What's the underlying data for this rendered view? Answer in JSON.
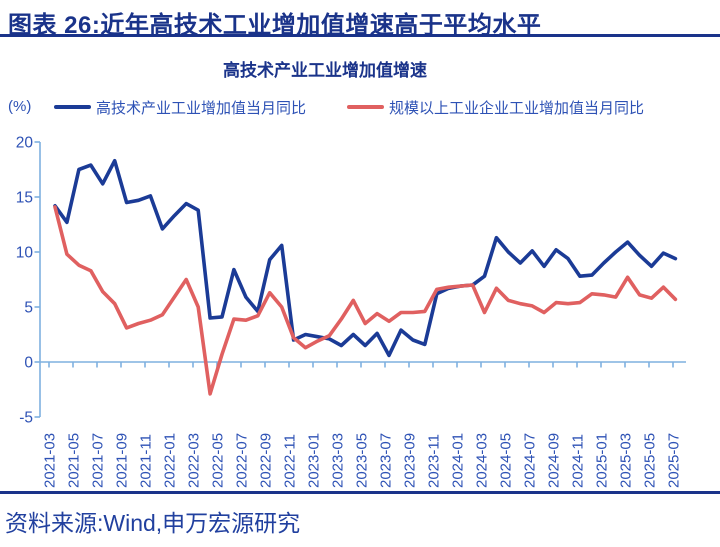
{
  "header": {
    "title": "图表 26:近年高技术工业增加值增速高于平均水平"
  },
  "source_line": "资料来源:Wind,申万宏源研究",
  "colors": {
    "navy": "#1A338A",
    "label_blue": "#2E52B5",
    "source_blue": "#21409F",
    "axis_blue": "#7FB0DF",
    "hitech_line": "#1B3B96",
    "industry_line": "#E06060"
  },
  "chart_data": {
    "type": "line",
    "title": "高技术产业工业增加值增速",
    "unit": "(%)",
    "ylim": [
      -5,
      20
    ],
    "y_ticks": [
      20,
      15,
      10,
      5,
      0,
      -5
    ],
    "grid": false,
    "legend_position": "top",
    "x_tick_labels": [
      "2021-03",
      "2021-05",
      "2021-07",
      "2021-09",
      "2021-11",
      "2022-01",
      "2022-03",
      "2022-05",
      "2022-07",
      "2022-09",
      "2022-11",
      "2023-01",
      "2023-03",
      "2023-05",
      "2023-07",
      "2023-09",
      "2023-11",
      "2024-01",
      "2024-03",
      "2024-05",
      "2024-07",
      "2024-09",
      "2024-11",
      "2025-01",
      "2025-03",
      "2025-05",
      "2025-07"
    ],
    "x": [
      "2021-03",
      "2021-04",
      "2021-05",
      "2021-06",
      "2021-07",
      "2021-08",
      "2021-09",
      "2021-10",
      "2021-11",
      "2021-12",
      "2022-01",
      "2022-02",
      "2022-03",
      "2022-04",
      "2022-05",
      "2022-06",
      "2022-07",
      "2022-08",
      "2022-09",
      "2022-10",
      "2022-11",
      "2022-12",
      "2023-01",
      "2023-02",
      "2023-03",
      "2023-04",
      "2023-05",
      "2023-06",
      "2023-07",
      "2023-08",
      "2023-09",
      "2023-10",
      "2023-11",
      "2023-12",
      "2024-01",
      "2024-02",
      "2024-03",
      "2024-04",
      "2024-05",
      "2024-06",
      "2024-07",
      "2024-08",
      "2024-09",
      "2024-10",
      "2024-11",
      "2024-12",
      "2025-01",
      "2025-02",
      "2025-03",
      "2025-04",
      "2025-05",
      "2025-06",
      "2025-07"
    ],
    "series": [
      {
        "name": "高技术产业工业增加值当月同比",
        "color": "#1B3B96",
        "values": [
          14.2,
          12.7,
          17.5,
          17.9,
          16.2,
          18.3,
          14.5,
          14.7,
          15.1,
          12.1,
          13.3,
          14.4,
          13.8,
          4.0,
          4.1,
          8.4,
          5.9,
          4.6,
          9.3,
          10.6,
          2.0,
          2.5,
          2.3,
          2.1,
          1.5,
          2.5,
          1.5,
          2.6,
          0.6,
          2.9,
          2.0,
          1.6,
          6.2,
          6.7,
          6.9,
          7.0,
          7.8,
          11.3,
          10.0,
          9.0,
          10.1,
          8.7,
          10.2,
          9.4,
          7.8,
          7.9,
          9.0,
          10.0,
          10.9,
          9.7,
          8.7,
          9.9,
          9.4
        ]
      },
      {
        "name": "规模以上工业企业工业增加值当月同比",
        "color": "#E06060",
        "values": [
          14.1,
          9.8,
          8.8,
          8.3,
          6.4,
          5.3,
          3.1,
          3.5,
          3.8,
          4.3,
          5.9,
          7.5,
          5.0,
          -2.9,
          0.7,
          3.9,
          3.8,
          4.2,
          6.3,
          5.0,
          2.2,
          1.3,
          1.9,
          2.4,
          3.9,
          5.6,
          3.5,
          4.4,
          3.7,
          4.5,
          4.5,
          4.6,
          6.6,
          6.8,
          6.9,
          7.0,
          4.5,
          6.7,
          5.6,
          5.3,
          5.1,
          4.5,
          5.4,
          5.3,
          5.4,
          6.2,
          6.1,
          5.9,
          7.7,
          6.1,
          5.8,
          6.8,
          5.7
        ]
      }
    ]
  }
}
